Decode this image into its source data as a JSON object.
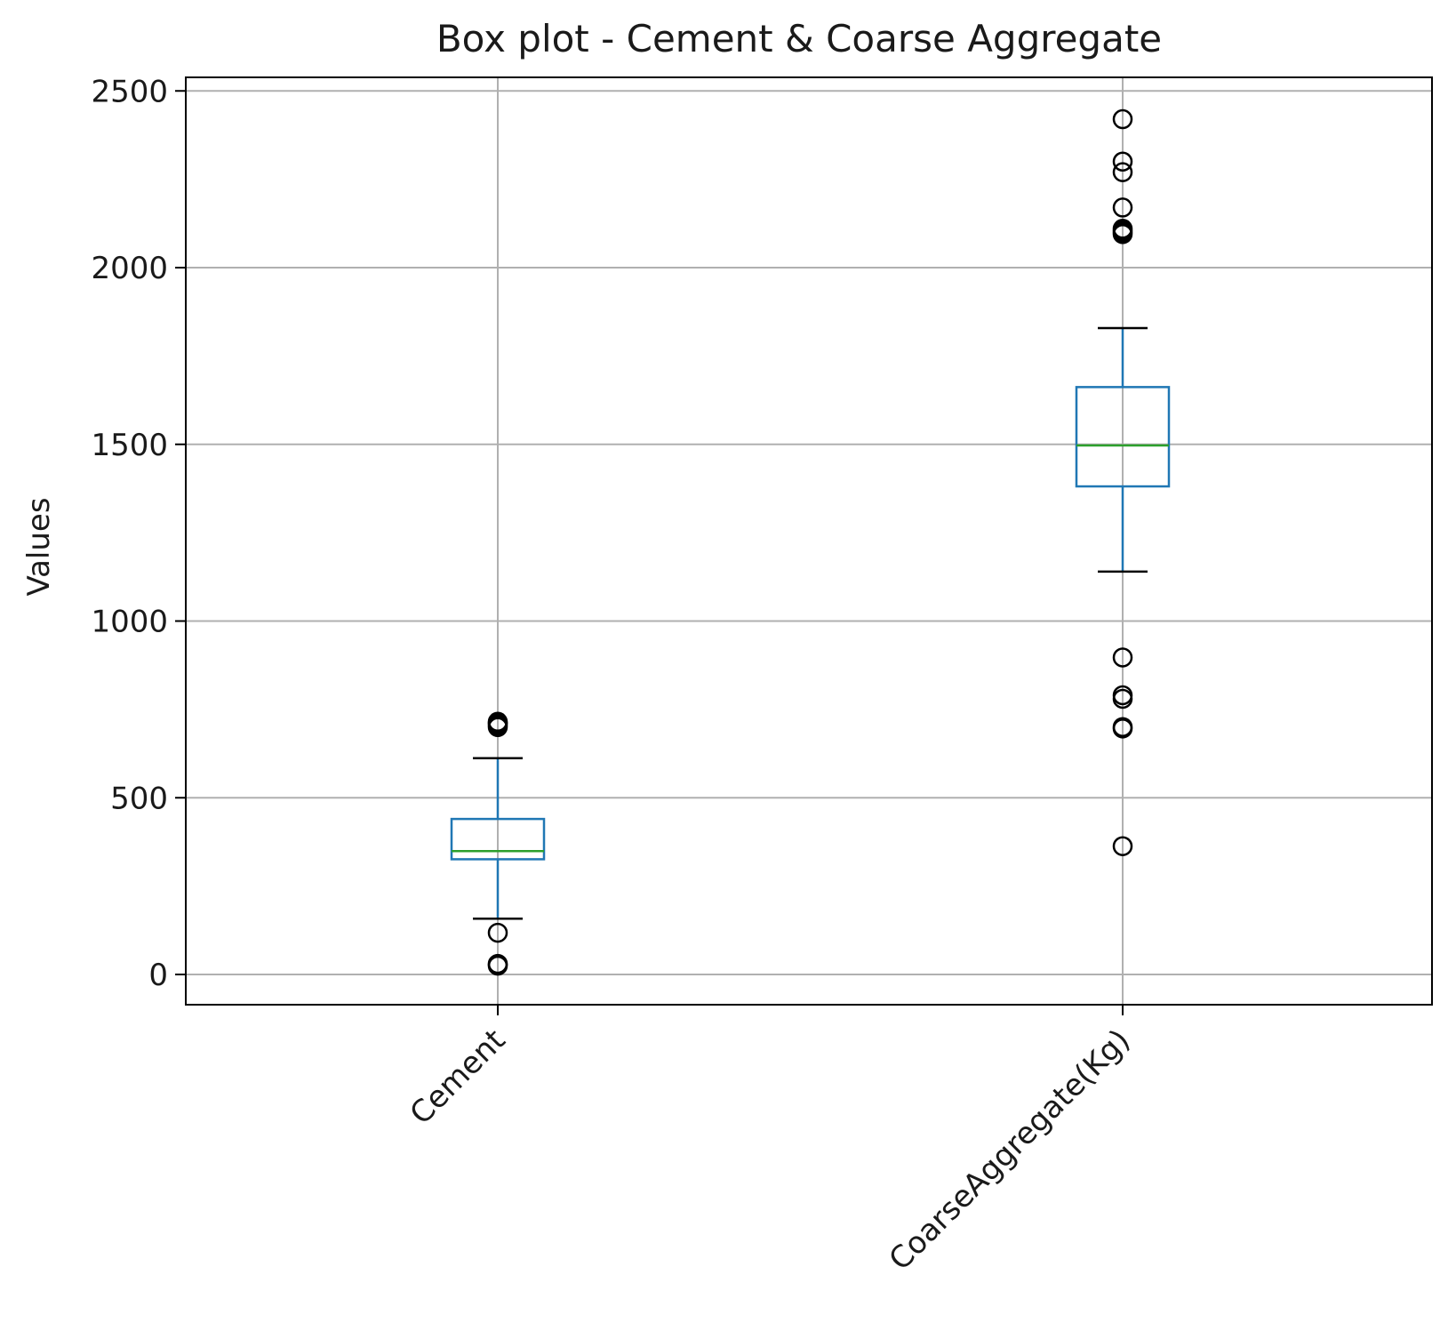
{
  "chart_data": {
    "type": "box",
    "title": "Box plot - Cement & Coarse Aggregate",
    "xlabel": "",
    "ylabel": "Values",
    "ylim": [
      -85,
      2540
    ],
    "yticks": [
      0,
      500,
      1000,
      1500,
      2000,
      2500
    ],
    "grid": true,
    "categories": [
      "Cement",
      "CoarseAggregate(Kg)"
    ],
    "boxes": [
      {
        "category": "Cement",
        "whisker_low": 158,
        "q1": 326,
        "median": 349,
        "q3": 440,
        "whisker_high": 612,
        "outliers": [
          25,
          28,
          30,
          118,
          700,
          705,
          710,
          712,
          715
        ]
      },
      {
        "category": "CoarseAggregate(Kg)",
        "whisker_low": 1140,
        "q1": 1381,
        "median": 1497,
        "q3": 1662,
        "whisker_high": 1829,
        "outliers": [
          363,
          696,
          700,
          780,
          790,
          897,
          2095,
          2100,
          2105,
          2110,
          2170,
          2270,
          2300,
          2420
        ]
      }
    ],
    "colors": {
      "box": "#1f77b4",
      "median": "#2ca02c",
      "whisker_cap": "#000000",
      "outlier": "#000000",
      "grid": "#b0b0b0"
    }
  }
}
